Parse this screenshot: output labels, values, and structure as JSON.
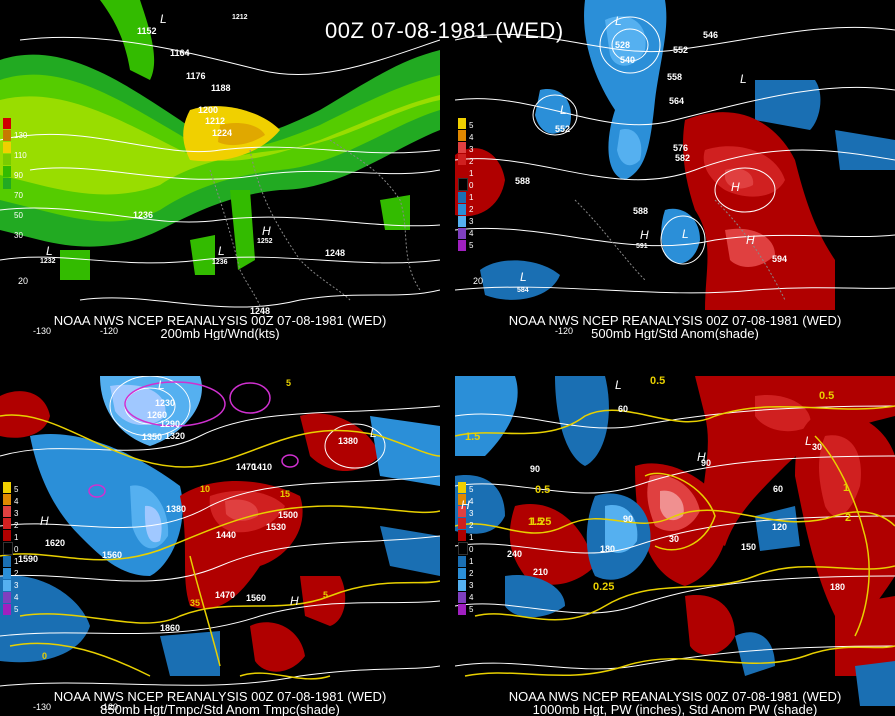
{
  "main_title": "00Z 07-08-1981 (WED)",
  "panels": [
    {
      "caption_line1": "NOAA NWS NCEP REANALYSIS 00Z 07-08-1981 (WED)",
      "caption_line2": "200mb Hgt/Wnd(kts)",
      "legend": [
        "130",
        "110",
        "90",
        "70",
        "50",
        "30"
      ],
      "legend_colors": [
        "#d00000",
        "#c87800",
        "#f0d000",
        "#7acc00",
        "#33bb00",
        "#22aa22"
      ],
      "contour_labels": [
        "1152",
        "1164",
        "1176",
        "1188",
        "1200",
        "1212",
        "1224",
        "1236",
        "1248",
        "1248",
        "1252",
        "1232",
        "1236",
        "1212"
      ],
      "pressure_centers": [
        "L",
        "L",
        "L",
        "H"
      ],
      "lon_ticks": [
        "-130",
        "-120",
        "20"
      ]
    },
    {
      "caption_line1": "NOAA NWS NCEP REANALYSIS 00Z 07-08-1981 (WED)",
      "caption_line2": "500mb Hgt/Std Anom(shade)",
      "legend": [
        "5",
        "4",
        "3",
        "2",
        "1",
        "0",
        "1",
        "2",
        "3",
        "4",
        "5"
      ],
      "legend_colors": [
        "#f0d000",
        "#e08800",
        "#e04040",
        "#d02020",
        "#b00000",
        "#000000",
        "#1a6fb3",
        "#2b8fd8",
        "#55b0f0",
        "#7f3fbf",
        "#a020c0"
      ],
      "contour_labels": [
        "528",
        "540",
        "546",
        "552",
        "552",
        "558",
        "564",
        "576",
        "582",
        "588",
        "588",
        "591",
        "594",
        "584"
      ],
      "pressure_centers": [
        "L",
        "L",
        "L",
        "H",
        "H",
        "L",
        "L"
      ],
      "lon_ticks": [
        "20",
        "-120"
      ]
    },
    {
      "caption_line1": "NOAA NWS NCEP REANALYSIS 00Z 07-08-1981 (WED)",
      "caption_line2": "850mb Hgt/Tmpc/Std Anom Tmpc(shade)",
      "legend": [
        "5",
        "4",
        "3",
        "2",
        "1",
        "0",
        "1",
        "2",
        "3",
        "4",
        "5"
      ],
      "legend_colors": [
        "#f0d000",
        "#e08800",
        "#e04040",
        "#d02020",
        "#b00000",
        "#000000",
        "#1a6fb3",
        "#2b8fd8",
        "#55b0f0",
        "#7f3fbf",
        "#a020c0"
      ],
      "contour_labels": [
        "1230",
        "1260",
        "1290",
        "1320",
        "1350",
        "1380",
        "1410",
        "1440",
        "1470",
        "1500",
        "1530",
        "1560",
        "1590",
        "1620",
        "1470",
        "1560",
        "1860",
        "1380"
      ],
      "temp_labels": [
        "10",
        "5",
        "15",
        "35",
        "5",
        "0"
      ],
      "pressure_centers": [
        "L",
        "L",
        "H",
        "H"
      ],
      "lon_ticks": [
        "-130",
        "-120"
      ]
    },
    {
      "caption_line1": "NOAA NWS NCEP REANALYSIS 00Z 07-08-1981 (WED)",
      "caption_line2": "1000mb Hgt, PW (inches), Std Anom PW (shade)",
      "legend": [
        "5",
        "4",
        "3",
        "2",
        "1",
        "0",
        "1",
        "2",
        "3",
        "4",
        "5"
      ],
      "legend_colors": [
        "#f0d000",
        "#e08800",
        "#e04040",
        "#d02020",
        "#b00000",
        "#000000",
        "#1a6fb3",
        "#2b8fd8",
        "#55b0f0",
        "#7f3fbf",
        "#a020c0"
      ],
      "contour_labels": [
        "90",
        "60",
        "30",
        "120",
        "150",
        "180",
        "210",
        "240",
        "90",
        "60",
        "30",
        "180",
        "90"
      ],
      "pw_labels": [
        "0.5",
        "0.25",
        "1.5",
        "1",
        "1.25",
        "0.5",
        "2",
        "1.5",
        "0.5"
      ],
      "pressure_centers": [
        "L",
        "H",
        "H",
        "L"
      ],
      "lon_ticks": []
    }
  ]
}
